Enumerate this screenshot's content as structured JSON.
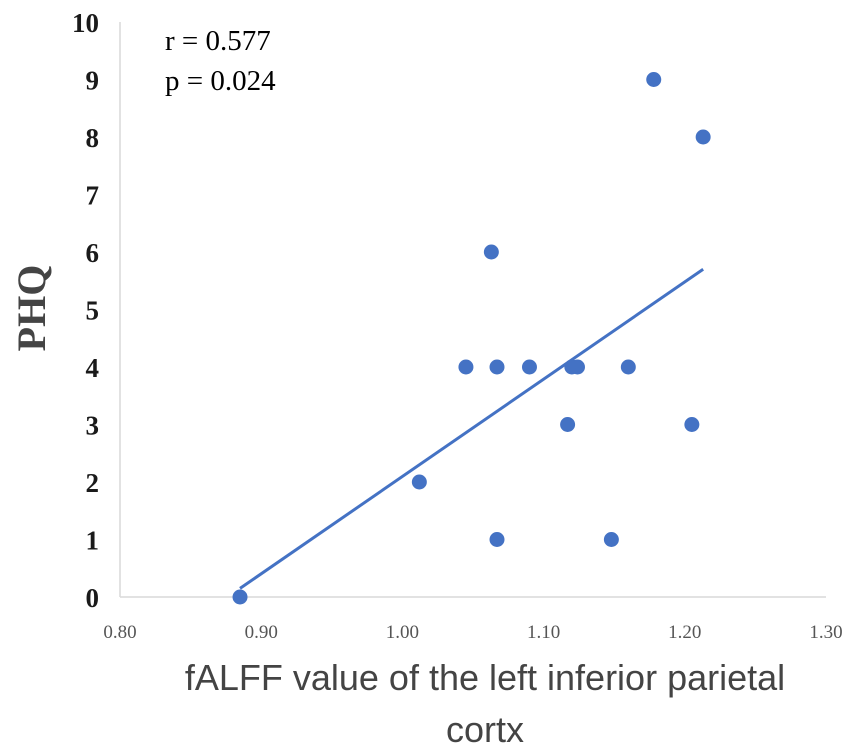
{
  "chart_data": {
    "type": "scatter",
    "xlabel_lines": [
      "fALFF value of the left inferior parietal",
      "cortx"
    ],
    "ylabel": "PHQ",
    "xlim": [
      0.8,
      1.3
    ],
    "ylim": [
      0,
      10
    ],
    "x_ticks": [
      "0.80",
      "0.90",
      "1.00",
      "1.10",
      "1.20",
      "1.30"
    ],
    "y_ticks": [
      "0",
      "1",
      "2",
      "3",
      "4",
      "5",
      "6",
      "7",
      "8",
      "9",
      "10"
    ],
    "grid": false,
    "point_color": "#4472c4",
    "line_color": "#4472c4",
    "points": [
      {
        "x": 0.885,
        "y": 0
      },
      {
        "x": 1.012,
        "y": 2
      },
      {
        "x": 1.045,
        "y": 4
      },
      {
        "x": 1.063,
        "y": 6
      },
      {
        "x": 1.067,
        "y": 4
      },
      {
        "x": 1.067,
        "y": 1
      },
      {
        "x": 1.09,
        "y": 4
      },
      {
        "x": 1.117,
        "y": 3
      },
      {
        "x": 1.12,
        "y": 4
      },
      {
        "x": 1.124,
        "y": 4
      },
      {
        "x": 1.148,
        "y": 1
      },
      {
        "x": 1.16,
        "y": 4
      },
      {
        "x": 1.178,
        "y": 9
      },
      {
        "x": 1.205,
        "y": 3
      },
      {
        "x": 1.213,
        "y": 8
      }
    ],
    "trendline": {
      "x": [
        0.885,
        1.213
      ],
      "y": [
        0.15,
        5.7
      ]
    },
    "annotations": [
      "r = 0.577",
      "p = 0.024"
    ]
  }
}
